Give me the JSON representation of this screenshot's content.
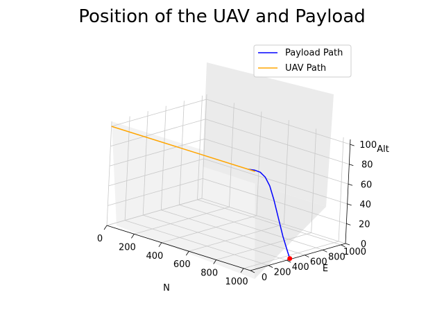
{
  "chart_data": {
    "type": "line",
    "projection": "3d",
    "title": "Position of the UAV and Payload",
    "xlabel": "N",
    "ylabel": "E",
    "zlabel": "Alt",
    "xlim": [
      0,
      1050
    ],
    "ylim": [
      0,
      1050
    ],
    "zlim": [
      0,
      105
    ],
    "xticks": [
      "0",
      "200",
      "400",
      "600",
      "800",
      "1000"
    ],
    "yticks": [
      "0",
      "200",
      "400",
      "600",
      "800",
      "1000"
    ],
    "zticks": [
      "0",
      "20",
      "40",
      "60",
      "80",
      "100"
    ],
    "grid": true,
    "legend_position": "upper-right",
    "series": [
      {
        "name": "Payload Path",
        "color": "#0000ff",
        "points": [
          {
            "n": 1000,
            "e": 0,
            "alt": 100
          },
          {
            "n": 1020,
            "e": 40,
            "alt": 99
          },
          {
            "n": 1030,
            "e": 90,
            "alt": 96
          },
          {
            "n": 1035,
            "e": 140,
            "alt": 90
          },
          {
            "n": 1038,
            "e": 190,
            "alt": 80
          },
          {
            "n": 1040,
            "e": 240,
            "alt": 65
          },
          {
            "n": 1040,
            "e": 300,
            "alt": 45
          },
          {
            "n": 1040,
            "e": 360,
            "alt": 25
          },
          {
            "n": 1040,
            "e": 420,
            "alt": 8
          },
          {
            "n": 1040,
            "e": 450,
            "alt": 0
          }
        ]
      },
      {
        "name": "UAV Path",
        "color": "#ffa500",
        "points": [
          {
            "n": 0,
            "e": 0,
            "alt": 100
          },
          {
            "n": 1050,
            "e": 0,
            "alt": 100
          }
        ]
      }
    ],
    "landing_point": {
      "n": 1040,
      "e": 450,
      "alt": 0,
      "color": "#ff0000"
    }
  }
}
